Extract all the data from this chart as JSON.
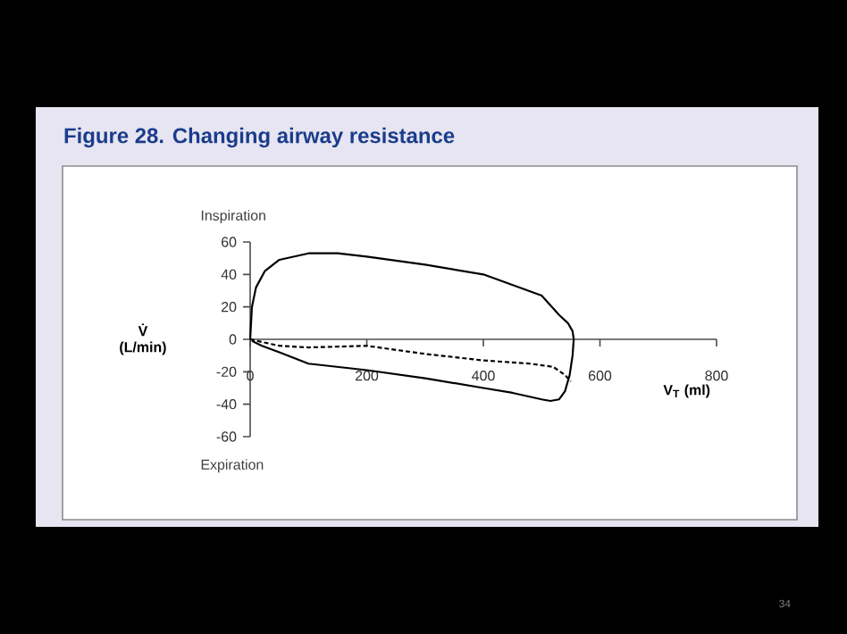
{
  "chart_data": {
    "type": "line",
    "title": "Figure 28. Changing airway resistance",
    "xlabel": "V$_{T}$ (ml)",
    "ylabel": "V̇ (L/min)",
    "annotations": [
      "Inspiration",
      "Expiration",
      "34"
    ],
    "xlim": [
      0,
      800
    ],
    "xticks": [
      0,
      200,
      400,
      600,
      800
    ],
    "ylim": [
      -60,
      60
    ],
    "yticks": [
      60,
      40,
      20,
      0,
      -20,
      -40,
      -60
    ],
    "grid": false,
    "marker": "none",
    "series": [
      {
        "color": "#000000",
        "line_style": "solid",
        "x": [
          0,
          3,
          10,
          25,
          50,
          100,
          150,
          200,
          300,
          400,
          500,
          530,
          545,
          553,
          555,
          553,
          548,
          540,
          530,
          515,
          500,
          450,
          400,
          300,
          200,
          100,
          50,
          20,
          3
        ],
        "values": [
          0,
          20,
          32,
          42,
          49,
          53,
          53,
          51,
          46,
          40,
          27,
          15,
          10,
          5,
          0,
          -10,
          -22,
          -32,
          -37,
          -38,
          -37,
          -33,
          -30,
          -24,
          -19,
          -15,
          -8,
          -4,
          -1
        ]
      },
      {
        "color": "#000000",
        "line_style": "dashed",
        "x": [
          0,
          50,
          100,
          200,
          300,
          400,
          480,
          520,
          540,
          550
        ],
        "values": [
          0,
          -4,
          -5,
          -4,
          -9,
          -13,
          -15,
          -17,
          -22,
          -26
        ]
      }
    ]
  }
}
